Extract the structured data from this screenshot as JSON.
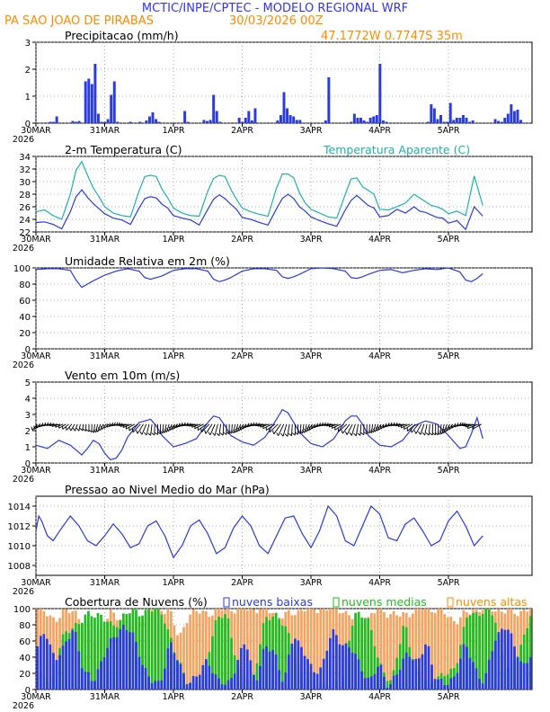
{
  "header": {
    "title": "MCTIC/INPE/CPTEC - MODELO REGIONAL WRF",
    "location": "PA SAO JOAO DE PIRABAS",
    "run": "30/03/2026 00Z",
    "coords": "47.1772W 0.7747S 35m"
  },
  "colors": {
    "title": "#3333ff",
    "orange": "#ff8c00",
    "blue": "#2a3be0",
    "cyan": "#20b2aa",
    "green": "#22bb22",
    "cloud_orange": "#f4a460",
    "grid": "#9a9a9a"
  },
  "x_axis": {
    "ticks": [
      "30MAR",
      "31MAR",
      "1APR",
      "2APR",
      "3APR",
      "4APR",
      "5APR"
    ],
    "year": "2026",
    "hours_per_day": 24,
    "total_hours": 156
  },
  "chart_data": [
    {
      "type": "bar",
      "title": "Precipitacao (mm/h)",
      "ylim": [
        0,
        3
      ],
      "yticks": [
        "0",
        "1",
        "2",
        "3"
      ],
      "series": [
        {
          "name": "Precipitacao",
          "color": "#2a3be0",
          "values": [
            0,
            0,
            0,
            0.02,
            0.05,
            0.05,
            0.25,
            0,
            0,
            0,
            0,
            0.08,
            0.05,
            0.08,
            0,
            1.55,
            1.65,
            1.45,
            2.2,
            0.35,
            0.05,
            0.05,
            0.15,
            1.05,
            1.55,
            0.05,
            0,
            0,
            0,
            0.05,
            0,
            0,
            0.05,
            0,
            0.1,
            0.25,
            0.4,
            0.15,
            0.05,
            0,
            0,
            0,
            0,
            0,
            0,
            0,
            0.45,
            0.05,
            0,
            0,
            0,
            0,
            0.12,
            0.08,
            0.12,
            1.05,
            0.45,
            0.05,
            0,
            0,
            0,
            0,
            0,
            0.2,
            0.05,
            0.2,
            0.45,
            0.1,
            0.55,
            0,
            0,
            0,
            0,
            0,
            0,
            0.1,
            0.3,
            1.15,
            0.55,
            0.3,
            0.25,
            0.12,
            0.12,
            0.02,
            0,
            0,
            0,
            0,
            0,
            0,
            0.1,
            1.7,
            0,
            0,
            0,
            0,
            0,
            0,
            0.05,
            0.35,
            0.2,
            0.2,
            0.1,
            0.05,
            0.2,
            0.25,
            0.3,
            2.2,
            0.1,
            0.05,
            0,
            0,
            0,
            0,
            0,
            0,
            0,
            0,
            0,
            0,
            0,
            0,
            0.05,
            0.7,
            0.55,
            0.15,
            0.3,
            0.05,
            0.05,
            0.75,
            0.12,
            0.2,
            0.2,
            0.3,
            0.2,
            0.05,
            0.1,
            0,
            0,
            0,
            0,
            0,
            0,
            0.15,
            0.08,
            0.05,
            0.2,
            0.35,
            0.7,
            0.45,
            0.5,
            0.12,
            0.02,
            0,
            0
          ]
        }
      ]
    },
    {
      "type": "line",
      "title": "2-m Temperatura (C)",
      "legend": "Temperatura Aparente (C)",
      "ylim": [
        22,
        34
      ],
      "yticks": [
        "22",
        "24",
        "26",
        "28",
        "30",
        "32",
        "34"
      ],
      "series": [
        {
          "name": "Temperatura",
          "color": "#2a3be0",
          "x": [
            0,
            3,
            6,
            9,
            12,
            14,
            16,
            18,
            20,
            22,
            24,
            27,
            30,
            33,
            36,
            38,
            40,
            42,
            44,
            46,
            48,
            51,
            54,
            57,
            60,
            62,
            64,
            66,
            68,
            70,
            72,
            75,
            78,
            81,
            84,
            86,
            88,
            90,
            92,
            94,
            96,
            99,
            102,
            105,
            108,
            110,
            112,
            114,
            116,
            118,
            120,
            123,
            126,
            129,
            132,
            134,
            136,
            138,
            140,
            142,
            144,
            147,
            150,
            153,
            156
          ],
          "values": [
            23.5,
            23.6,
            23.2,
            22.5,
            25.2,
            27.6,
            28.7,
            27.5,
            26.5,
            25.7,
            24.9,
            24.2,
            23.9,
            23.2,
            25.8,
            27.3,
            27.6,
            27.4,
            26.4,
            25.8,
            24.6,
            24.2,
            23.9,
            23.1,
            25.6,
            27.2,
            27.9,
            27.3,
            26.4,
            25.6,
            24.3,
            24.0,
            23.5,
            23.1,
            25.7,
            27.3,
            28.0,
            27.3,
            26.0,
            25.3,
            24.4,
            23.8,
            23.3,
            22.9,
            25.5,
            27.0,
            27.8,
            27.0,
            26.2,
            25.8,
            24.4,
            24.6,
            25.6,
            25.0,
            26.0,
            25.3,
            25.1,
            24.7,
            24.3,
            24.2,
            23.4,
            23.8,
            22.4,
            26.0,
            24.5
          ]
        },
        {
          "name": "Temperatura Aparente",
          "color": "#20b2aa",
          "x": [
            0,
            3,
            6,
            9,
            12,
            14,
            16,
            18,
            20,
            22,
            24,
            27,
            30,
            33,
            36,
            38,
            40,
            42,
            44,
            46,
            48,
            51,
            54,
            57,
            60,
            62,
            64,
            66,
            68,
            70,
            72,
            75,
            78,
            81,
            84,
            86,
            88,
            90,
            92,
            94,
            96,
            99,
            102,
            105,
            108,
            110,
            112,
            114,
            116,
            118,
            120,
            123,
            126,
            129,
            132,
            134,
            136,
            138,
            140,
            142,
            144,
            147,
            150,
            153,
            156
          ],
          "values": [
            25.2,
            25.5,
            24.6,
            24.0,
            28.0,
            31.8,
            33.2,
            31.0,
            29.0,
            27.6,
            26.0,
            25.0,
            24.6,
            24.4,
            28.5,
            30.8,
            31.0,
            30.8,
            28.8,
            27.4,
            25.8,
            25.0,
            24.6,
            24.5,
            28.5,
            30.5,
            31.0,
            30.8,
            28.8,
            27.2,
            25.8,
            25.2,
            24.8,
            24.5,
            29.0,
            31.2,
            31.2,
            30.6,
            28.2,
            26.6,
            25.6,
            25.0,
            24.4,
            24.2,
            28.0,
            30.4,
            30.6,
            29.2,
            28.6,
            28.0,
            25.6,
            25.5,
            26.0,
            26.6,
            28.0,
            27.4,
            26.8,
            26.2,
            26.0,
            25.6,
            24.9,
            25.3,
            24.6,
            30.9,
            26.2
          ]
        }
      ]
    },
    {
      "type": "line",
      "title": "Umidade Relativa em 2m (%)",
      "ylim": [
        0,
        100
      ],
      "yticks": [
        "0",
        "20",
        "40",
        "60",
        "80",
        "100"
      ],
      "series": [
        {
          "name": "Umidade Relativa",
          "color": "#2a3be0",
          "x": [
            0,
            4,
            8,
            12,
            14,
            16,
            18,
            20,
            24,
            28,
            32,
            36,
            38,
            40,
            42,
            44,
            48,
            52,
            56,
            60,
            62,
            64,
            66,
            68,
            72,
            76,
            80,
            84,
            86,
            88,
            90,
            92,
            96,
            100,
            104,
            108,
            110,
            112,
            114,
            116,
            120,
            124,
            128,
            132,
            136,
            140,
            144,
            148,
            150,
            152,
            154,
            156
          ],
          "values": [
            98,
            99,
            99,
            97,
            85,
            76,
            80,
            84,
            91,
            96,
            99,
            96,
            88,
            86,
            88,
            90,
            97,
            99,
            99,
            96,
            86,
            83,
            85,
            88,
            96,
            99,
            99,
            97,
            89,
            87,
            89,
            92,
            99,
            100,
            99,
            96,
            88,
            87,
            89,
            92,
            97,
            98,
            94,
            97,
            99,
            98,
            100,
            95,
            85,
            83,
            87,
            93
          ]
        }
      ]
    },
    {
      "type": "line",
      "title": "Vento em 10m (m/s)",
      "ylim": [
        0,
        5
      ],
      "yticks": [
        "0",
        "1",
        "2",
        "3",
        "4",
        "5"
      ],
      "series": [
        {
          "name": "Vento",
          "color": "#2a3be0",
          "x": [
            0,
            4,
            8,
            12,
            14,
            16,
            18,
            20,
            22,
            24,
            26,
            28,
            30,
            32,
            36,
            40,
            42,
            44,
            48,
            52,
            56,
            60,
            62,
            64,
            66,
            68,
            72,
            76,
            80,
            84,
            86,
            88,
            90,
            92,
            96,
            100,
            104,
            108,
            110,
            112,
            114,
            116,
            120,
            124,
            128,
            132,
            136,
            140,
            144,
            148,
            150,
            152,
            154,
            156
          ],
          "values": [
            1.1,
            0.9,
            1.4,
            1.1,
            0.8,
            0.5,
            0.9,
            1.4,
            1.2,
            0.6,
            0.2,
            0.3,
            0.8,
            1.6,
            2.5,
            2.7,
            2.3,
            1.7,
            1.0,
            1.2,
            1.5,
            2.5,
            2.9,
            2.8,
            2.3,
            1.7,
            1.3,
            1.1,
            1.6,
            2.7,
            3.3,
            3.1,
            2.5,
            1.9,
            1.2,
            1.0,
            1.5,
            2.6,
            2.9,
            2.9,
            2.4,
            1.7,
            1.1,
            1.0,
            1.4,
            2.3,
            2.6,
            2.4,
            1.7,
            0.9,
            1.0,
            1.8,
            2.8,
            1.5
          ]
        }
      ]
    },
    {
      "type": "line",
      "title": "Pressao ao Nivel Medio do Mar (hPa)",
      "ylim": [
        1007,
        1015
      ],
      "yticks": [
        "1008",
        "1010",
        "1012",
        "1014"
      ],
      "series": [
        {
          "name": "Pressao",
          "color": "#2a3be0",
          "x": [
            0,
            1,
            2,
            4,
            6,
            9,
            12,
            15,
            18,
            21,
            24,
            27,
            30,
            33,
            36,
            39,
            42,
            45,
            48,
            51,
            54,
            57,
            60,
            63,
            66,
            69,
            72,
            75,
            78,
            81,
            84,
            87,
            90,
            93,
            96,
            99,
            102,
            105,
            108,
            111,
            114,
            117,
            120,
            123,
            126,
            129,
            132,
            135,
            138,
            141,
            144,
            147,
            150,
            153,
            156
          ],
          "values": [
            1011.5,
            1013.0,
            1012.5,
            1011.0,
            1010.5,
            1011.8,
            1013.0,
            1012.0,
            1010.5,
            1010.0,
            1011.0,
            1012.2,
            1011.2,
            1009.8,
            1010.2,
            1012.0,
            1012.5,
            1011.0,
            1008.8,
            1010.0,
            1012.0,
            1012.6,
            1011.2,
            1009.2,
            1009.8,
            1011.8,
            1013.0,
            1012.0,
            1010.0,
            1009.2,
            1011.0,
            1012.8,
            1013.0,
            1011.2,
            1009.8,
            1011.5,
            1014.0,
            1013.0,
            1010.5,
            1010.0,
            1012.0,
            1014.0,
            1013.2,
            1010.8,
            1010.5,
            1012.2,
            1012.8,
            1011.5,
            1010.0,
            1010.5,
            1012.5,
            1013.5,
            1012.0,
            1010.0,
            1011.0
          ]
        }
      ]
    },
    {
      "type": "bar",
      "title": "Cobertura de Nuvens (%)",
      "ylim": [
        0,
        100
      ],
      "yticks": [
        "0",
        "20",
        "40",
        "60",
        "80",
        "100"
      ],
      "legend": [
        "nuvens baixas",
        "nuvens medias",
        "nuvens altas"
      ],
      "series": [
        {
          "name": "nuvens altas",
          "color": "#f4a460",
          "x": [
            0,
            6,
            12,
            18,
            24,
            30,
            36,
            42,
            45,
            48,
            54,
            60,
            66,
            72,
            78,
            84,
            90,
            96,
            102,
            108,
            114,
            120,
            126,
            132,
            138,
            144,
            150,
            156
          ],
          "values": [
            100,
            88,
            100,
            60,
            95,
            80,
            100,
            100,
            60,
            95,
            95,
            100,
            100,
            100,
            90,
            100,
            100,
            100,
            80,
            100,
            90,
            100,
            100,
            85,
            100,
            100,
            95,
            100
          ]
        },
        {
          "name": "nuvens medias",
          "color": "#22bb22",
          "x": [
            0,
            4,
            8,
            12,
            16,
            20,
            24,
            28,
            32,
            36,
            40,
            44,
            48,
            52,
            56,
            60,
            64,
            68,
            72,
            76,
            80,
            84,
            88,
            92,
            96,
            100,
            104,
            108,
            112,
            116,
            120,
            124,
            128,
            132,
            136,
            140,
            144,
            148,
            152,
            156
          ],
          "values": [
            20,
            10,
            60,
            80,
            90,
            95,
            75,
            95,
            95,
            98,
            95,
            40,
            10,
            5,
            80,
            95,
            20,
            10,
            85,
            95,
            60,
            15,
            10,
            5,
            10,
            90,
            95,
            30,
            10,
            85,
            15,
            10,
            15,
            30,
            95,
            95,
            95,
            20,
            50,
            95
          ]
        },
        {
          "name": "nuvens baixas",
          "color": "#2a3be0",
          "x": [
            0,
            3,
            6,
            9,
            12,
            15,
            18,
            21,
            24,
            27,
            30,
            33,
            36,
            39,
            42,
            45,
            48,
            51,
            54,
            57,
            60,
            63,
            66,
            69,
            72,
            75,
            78,
            81,
            84,
            87,
            90,
            93,
            96,
            99,
            102,
            105,
            108,
            111,
            114,
            117,
            120,
            123,
            126,
            129,
            132,
            135,
            138,
            141,
            144,
            147,
            150,
            153,
            156
          ],
          "values": [
            50,
            70,
            40,
            50,
            80,
            20,
            10,
            40,
            60,
            80,
            70,
            40,
            10,
            5,
            60,
            30,
            10,
            15,
            40,
            10,
            5,
            30,
            60,
            10,
            50,
            50,
            5,
            70,
            50,
            20,
            30,
            70,
            60,
            50,
            30,
            10,
            30,
            5,
            20,
            50,
            30,
            60,
            10,
            5,
            20,
            55,
            30,
            5,
            60,
            80,
            60,
            30,
            40
          ]
        }
      ]
    }
  ]
}
